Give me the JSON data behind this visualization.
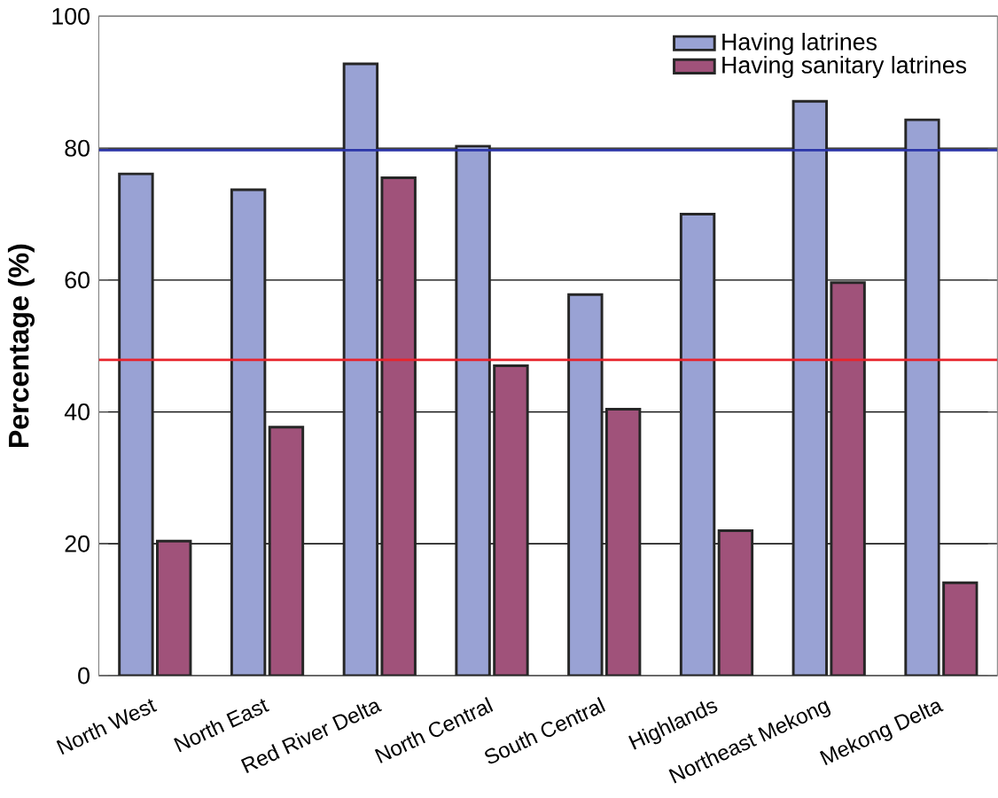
{
  "chart_data": {
    "type": "bar",
    "ylabel": "Percentage (%)",
    "categories": [
      "North West",
      "North East",
      "Red River Delta",
      "North Central",
      "South Central",
      "Highlands",
      "Northeast Mekong",
      "Mekong Delta"
    ],
    "series": [
      {
        "name": "Having latrines",
        "color": "#99a2d4",
        "values": [
          76.1,
          73.7,
          92.8,
          80.3,
          57.8,
          70.0,
          87.1,
          84.3
        ]
      },
      {
        "name": "Having sanitary latrines",
        "color": "#a0527a",
        "values": [
          20.4,
          37.7,
          75.5,
          47.0,
          40.4,
          22.0,
          59.6,
          14.1
        ]
      }
    ],
    "ylim": [
      0,
      100
    ],
    "yticks": [
      0,
      20,
      40,
      60,
      80,
      100
    ],
    "grid": "y",
    "legend": "top right",
    "ref_lines": [
      {
        "axis": "y",
        "value": 79.7,
        "color": "#2b35a8"
      },
      {
        "axis": "y",
        "value": 47.9,
        "color": "#e8242c"
      }
    ]
  }
}
